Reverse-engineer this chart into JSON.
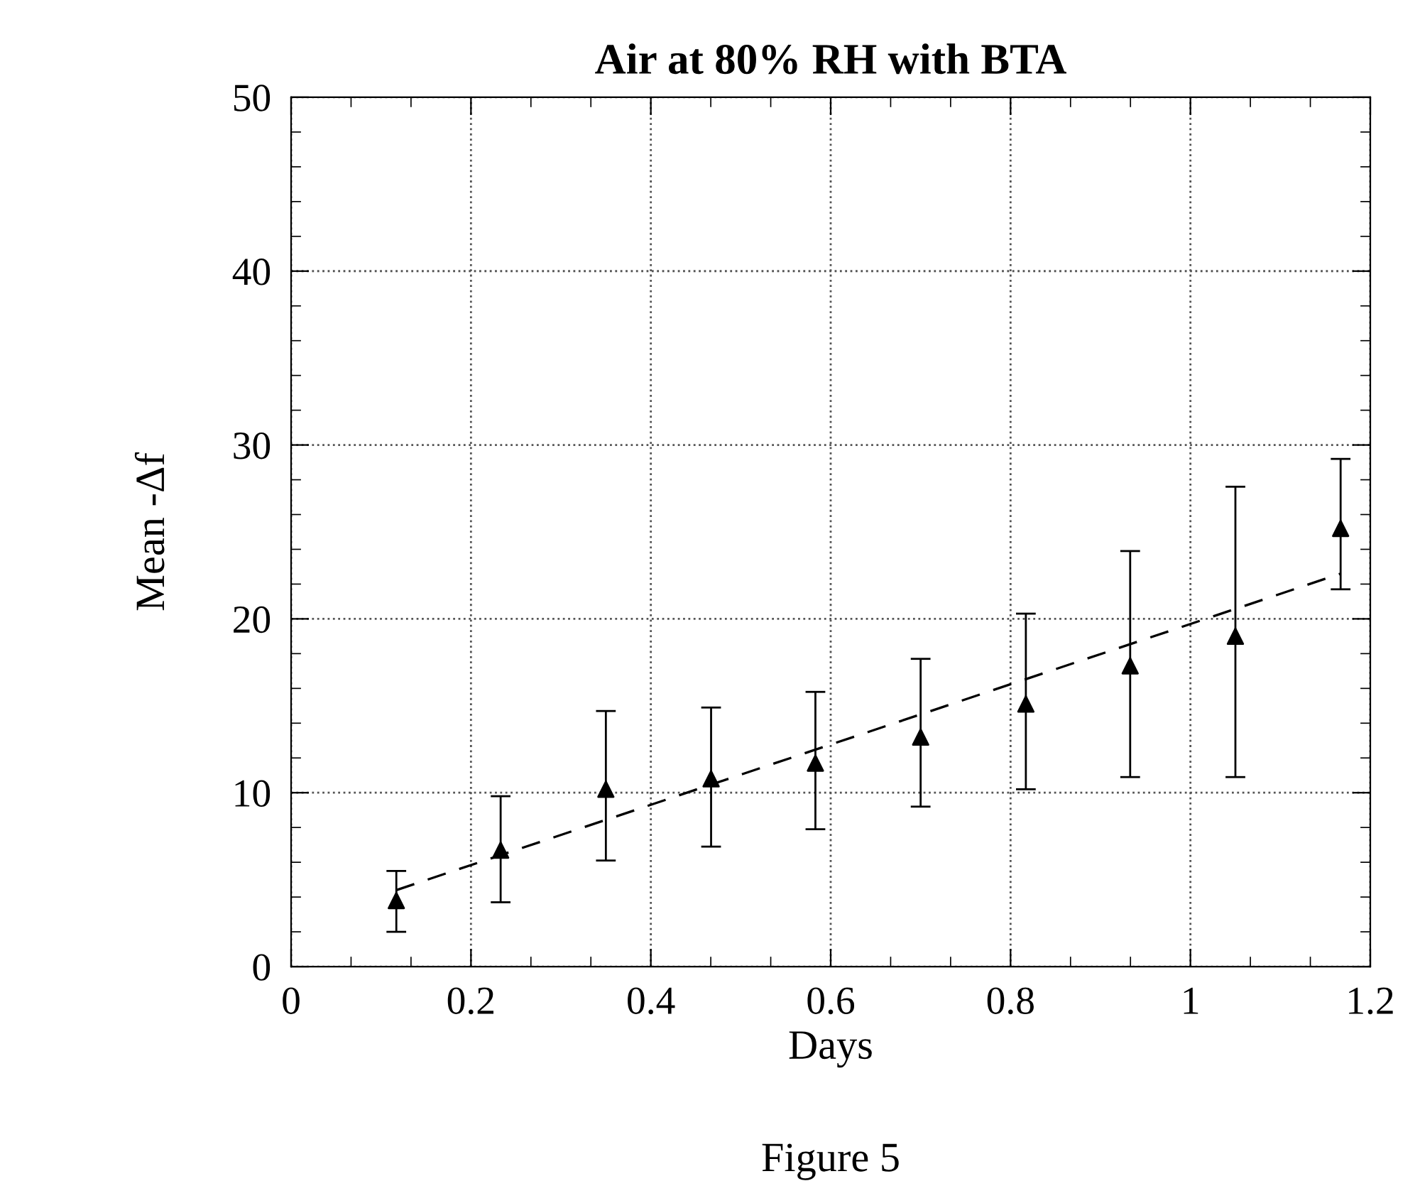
{
  "chart_data": {
    "type": "scatter",
    "title": "Air at 80% RH with BTA",
    "xlabel": "Days",
    "ylabel": "Mean -Δf",
    "annotations": [
      "Figure 5"
    ],
    "xlim": [
      0,
      1.2
    ],
    "ylim": [
      0,
      50
    ],
    "xticks": [
      0,
      0.2,
      0.4,
      0.6,
      0.8,
      1,
      1.2
    ],
    "yticks": [
      0,
      10,
      20,
      30,
      40,
      50
    ],
    "grid": true,
    "marker": "triangle",
    "series": [
      {
        "color": "#000000",
        "x": [
          0.117,
          0.233,
          0.35,
          0.467,
          0.583,
          0.7,
          0.817,
          0.933,
          1.05,
          1.167
        ],
        "values": [
          3.8,
          6.7,
          10.2,
          10.8,
          11.7,
          13.2,
          15.1,
          17.3,
          19.0,
          25.2
        ],
        "errors": [
          [
            2.0,
            5.5
          ],
          [
            3.7,
            9.8
          ],
          [
            6.1,
            14.7
          ],
          [
            6.9,
            14.9
          ],
          [
            7.9,
            15.8
          ],
          [
            9.2,
            17.7
          ],
          [
            10.2,
            20.3
          ],
          [
            10.9,
            23.9
          ],
          [
            10.9,
            27.6
          ],
          [
            21.7,
            29.2
          ]
        ]
      },
      {
        "type": "line",
        "color": "#000000",
        "line_style": "dashed",
        "marker": "none",
        "x": [
          0.117,
          1.167
        ],
        "values": [
          4.4,
          22.6
        ]
      }
    ]
  }
}
